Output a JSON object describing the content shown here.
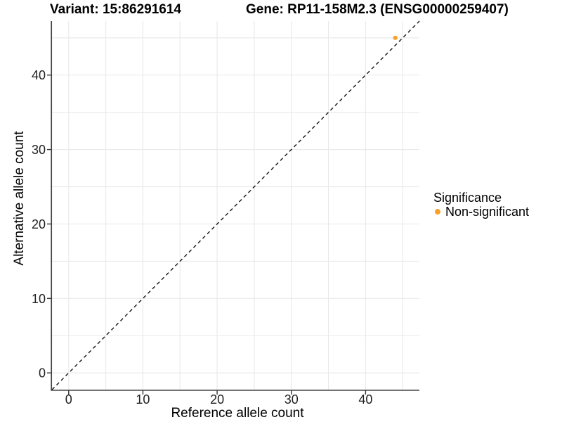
{
  "chart_data": {
    "type": "scatter",
    "title_left": "Variant: 15:86291614",
    "title_right": "Gene: RP11-158M2.3 (ENSG00000259407)",
    "xlabel": "Reference allele count",
    "ylabel": "Alternative allele count",
    "xlim": [
      -2.25,
      47.25
    ],
    "ylim": [
      -2.25,
      47.25
    ],
    "xticks": [
      0,
      10,
      20,
      30,
      40
    ],
    "yticks": [
      0,
      10,
      20,
      30,
      40
    ],
    "grid": {
      "visible": true,
      "step": 5,
      "min": 0,
      "max": 45,
      "color": "#E9E9E9"
    },
    "reference_line": {
      "label": "y = x",
      "slope": 1,
      "intercept": 0,
      "style": "dashed",
      "color": "#141414"
    },
    "series": [
      {
        "name": "Non-significant",
        "color": "#F8A029",
        "points": [
          {
            "x": 44,
            "y": 45
          }
        ]
      }
    ],
    "legend": {
      "title": "Significance",
      "position": "right",
      "items": [
        {
          "label": "Non-significant",
          "color": "#F8A029"
        }
      ]
    },
    "axis_color": "#404040",
    "tick_color": "#333333",
    "text_color": "#000000"
  }
}
